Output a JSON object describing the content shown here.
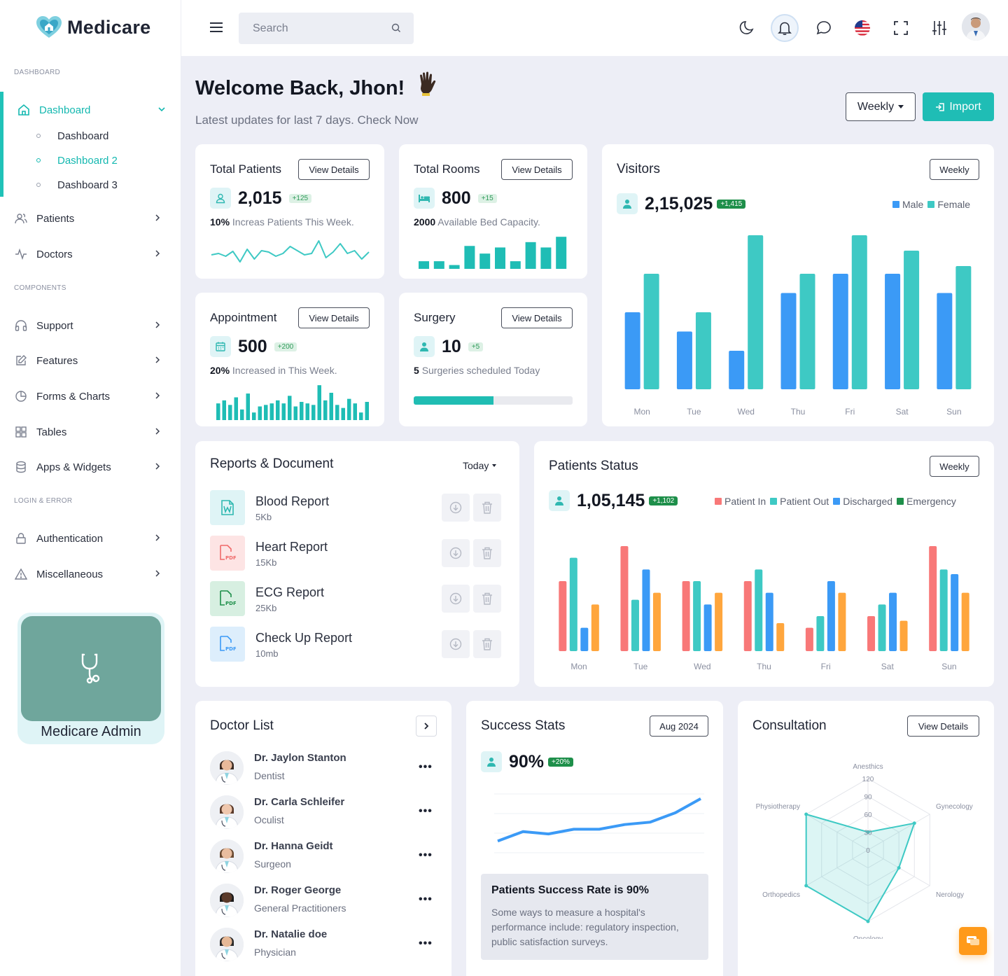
{
  "brand": {
    "name": "Medicare"
  },
  "sidebar": {
    "sections": {
      "dashboard": "DASHBOARD",
      "components": "COMPONENTS",
      "login": "LOGIN & ERROR"
    },
    "dashboard": {
      "label": "Dashboard",
      "sub": [
        "Dashboard",
        "Dashboard 2",
        "Dashboard 3"
      ],
      "active_sub": 1
    },
    "items": [
      "Patients",
      "Doctors"
    ],
    "component_items": [
      "Support",
      "Features",
      "Forms & Charts",
      "Tables",
      "Apps & Widgets"
    ],
    "login_items": [
      "Authentication",
      "Miscellaneous"
    ],
    "promo": "Medicare Admin"
  },
  "topbar": {
    "search_placeholder": "Search"
  },
  "header": {
    "title": "Welcome Back, Jhon!",
    "subtitle": "Latest updates for last 7 days. Check Now",
    "weekly_label": "Weekly",
    "import_label": "Import"
  },
  "stats": {
    "patients": {
      "title": "Total Patients",
      "btn": "View Details",
      "value": "2,015",
      "badge": "+125",
      "desc_bold": "10%",
      "desc": "Increas Patients This Week."
    },
    "rooms": {
      "title": "Total Rooms",
      "btn": "View Details",
      "value": "800",
      "badge": "+15",
      "desc_bold": "2000",
      "desc": "Available Bed Capacity."
    },
    "appointment": {
      "title": "Appointment",
      "btn": "View Details",
      "value": "500",
      "badge": "+200",
      "desc_bold": "20%",
      "desc": "Increased in This Week."
    },
    "surgery": {
      "title": "Surgery",
      "btn": "View Details",
      "value": "10",
      "badge": "+5",
      "desc_bold": "5",
      "desc": "Surgeries scheduled Today",
      "progress": 0.5
    }
  },
  "visitors": {
    "title": "Visitors",
    "btn": "Weekly",
    "value": "2,15,025",
    "badge": "+1,415",
    "legend": [
      "Male",
      "Female"
    ]
  },
  "reports": {
    "title": "Reports & Document",
    "filter": "Today",
    "items": [
      {
        "name": "Blood Report",
        "size": "5Kb",
        "type": "W"
      },
      {
        "name": "Heart Report",
        "size": "15Kb",
        "type": "PDF"
      },
      {
        "name": "ECG Report",
        "size": "25Kb",
        "type": "PDF"
      },
      {
        "name": "Check Up Report",
        "size": "10mb",
        "type": "PDF"
      }
    ]
  },
  "patients_status": {
    "title": "Patients Status",
    "btn": "Weekly",
    "value": "1,05,145",
    "badge": "+1,102",
    "legend": [
      "Patient In",
      "Patient Out",
      "Discharged",
      "Emergency"
    ]
  },
  "doctors": {
    "title": "Doctor List",
    "items": [
      {
        "name": "Dr. Jaylon Stanton",
        "spec": "Dentist"
      },
      {
        "name": "Dr. Carla Schleifer",
        "spec": "Oculist"
      },
      {
        "name": "Dr. Hanna Geidt",
        "spec": "Surgeon"
      },
      {
        "name": "Dr. Roger George",
        "spec": "General Practitioners"
      },
      {
        "name": "Dr. Natalie doe",
        "spec": "Physician"
      }
    ]
  },
  "success": {
    "title": "Success Stats",
    "period": "Aug 2024",
    "value": "90%",
    "badge": "+20%",
    "box_title": "Patients Success Rate is 90%",
    "box_text": "Some ways to measure a hospital's performance include: regulatory inspection, public satisfaction surveys."
  },
  "consultation": {
    "title": "Consultation",
    "btn": "View Details"
  },
  "colors": {
    "teal": "#3ec9c4",
    "blue": "#3b9af6",
    "red": "#f87878",
    "orange": "#ffa63d",
    "green": "#1e8f4a",
    "accent": "#1fbdb5"
  },
  "chart_data": [
    {
      "type": "bar",
      "title": "Visitors",
      "categories": [
        "Mon",
        "Tue",
        "Wed",
        "Thu",
        "Fri",
        "Sat",
        "Sun"
      ],
      "series": [
        {
          "name": "Male",
          "values": [
            40,
            30,
            20,
            50,
            60,
            60,
            50
          ]
        },
        {
          "name": "Female",
          "values": [
            60,
            40,
            80,
            60,
            80,
            72,
            64
          ]
        }
      ],
      "ylim": [
        0,
        80
      ],
      "legend": "top-right",
      "grid": false
    },
    {
      "type": "bar",
      "title": "Patients Status",
      "categories": [
        "Mon",
        "Tue",
        "Wed",
        "Thu",
        "Fri",
        "Sat",
        "Sun"
      ],
      "series": [
        {
          "name": "Patient In",
          "values": [
            60,
            90,
            60,
            60,
            20,
            30,
            90
          ]
        },
        {
          "name": "Patient Out",
          "values": [
            80,
            44,
            60,
            70,
            30,
            40,
            70
          ]
        },
        {
          "name": "Discharged",
          "values": [
            20,
            70,
            40,
            50,
            60,
            50,
            66
          ]
        },
        {
          "name": "Emergency",
          "values": [
            40,
            50,
            50,
            24,
            50,
            26,
            50
          ]
        }
      ],
      "ylim": [
        0,
        90
      ],
      "legend": "top-right",
      "grid": false
    },
    {
      "type": "line",
      "title": "Success Stats",
      "series": [
        {
          "values": [
            10,
            18,
            16,
            20,
            20,
            24,
            26,
            34,
            46
          ]
        }
      ],
      "ylim": [
        0,
        50
      ],
      "grid": true
    },
    {
      "type": "radar",
      "title": "Consultation",
      "categories": [
        "Anesthics",
        "Gynecology",
        "Nerology",
        "Oncology",
        "Orthopedics",
        "Physiotherapy"
      ],
      "ticks": [
        "0",
        "30",
        "60",
        "90",
        "120"
      ],
      "series": [
        {
          "values": [
            30,
            90,
            60,
            120,
            120,
            120
          ]
        }
      ],
      "ylim": [
        0,
        120
      ]
    },
    {
      "type": "line",
      "title": "Total Patients sparkline",
      "series": [
        {
          "values": [
            40,
            42,
            38,
            45,
            30,
            48,
            34,
            46,
            44,
            38,
            42,
            52,
            46,
            40,
            42,
            60,
            36,
            44,
            56,
            42,
            46,
            34,
            44
          ]
        }
      ]
    },
    {
      "type": "bar",
      "title": "Total Rooms sparkline",
      "series": [
        {
          "values": [
            10,
            10,
            5,
            30,
            20,
            28,
            10,
            35,
            28,
            42
          ]
        }
      ]
    },
    {
      "type": "bar",
      "title": "Appointment sparkline",
      "series": [
        {
          "values": [
            22,
            26,
            20,
            30,
            14,
            35,
            10,
            18,
            20,
            22,
            26,
            22,
            32,
            18,
            24,
            22,
            20,
            46,
            26,
            36,
            20,
            16,
            28,
            22,
            10,
            24
          ]
        }
      ]
    }
  ]
}
